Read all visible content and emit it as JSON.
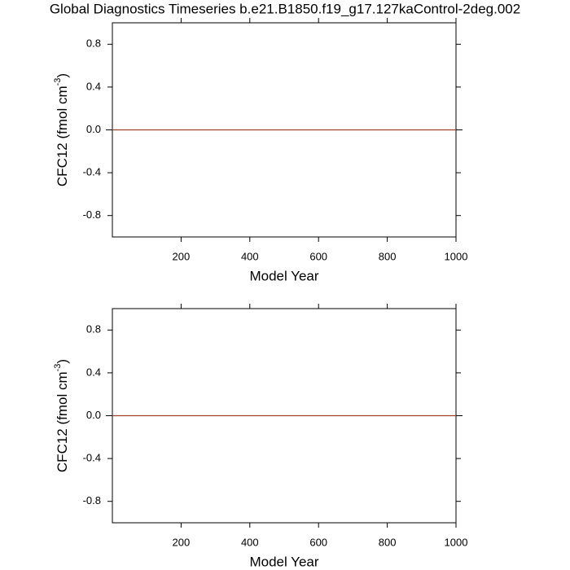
{
  "chart_data": [
    {
      "type": "line",
      "title": "Global Diagnostics Timeseries b.e21.B1850.f19_g17.127kaControl-2deg.002",
      "xlabel": "Model Year",
      "ylabel": [
        "CFC12 (fmol cm",
        "-3",
        ")"
      ],
      "x": [
        0,
        1000
      ],
      "series": [
        {
          "color": "#a0402a",
          "values": [
            0,
            0
          ]
        }
      ],
      "hline": 0,
      "xlim": [
        0,
        1000
      ],
      "xticks": [
        200,
        400,
        600,
        800,
        1000
      ],
      "ylim": [
        -1,
        1
      ],
      "yticks": [
        -0.8,
        -0.4,
        {
          "value": 0,
          "label": "0.0"
        },
        0.4,
        0.8
      ]
    },
    {
      "type": "line",
      "xlabel": "Model Year",
      "ylabel": [
        "CFC12 (fmol cm",
        "-3",
        ")"
      ],
      "x": [
        0,
        1000
      ],
      "series": [
        {
          "color": "#a0402a",
          "values": [
            0,
            0
          ]
        }
      ],
      "hline": 0,
      "xlim": [
        0,
        1000
      ],
      "xticks": [
        200,
        400,
        600,
        800,
        1000
      ],
      "ylim": [
        -1,
        1
      ],
      "yticks": [
        -0.8,
        -0.4,
        {
          "value": 0,
          "label": "0.0"
        },
        0.4,
        0.8
      ]
    }
  ]
}
